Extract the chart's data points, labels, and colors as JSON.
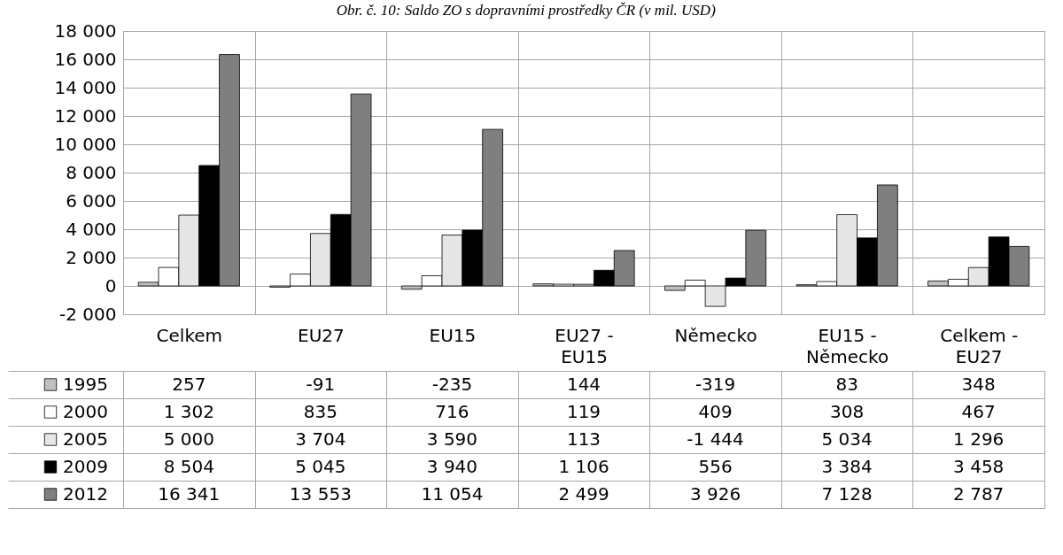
{
  "chart_data": {
    "type": "bar",
    "title": "Obr. č. 10: Saldo ZO s dopravními prostředky ČR (v mil. USD)",
    "categories": [
      "Celkem",
      "EU27",
      "EU15",
      "EU27 - EU15",
      "Německo",
      "EU15 - Německo",
      "Celkem - EU27"
    ],
    "series": [
      {
        "name": "1995",
        "color": "#bfbfbf",
        "values": [
          257,
          -91,
          -235,
          144,
          -319,
          83,
          348
        ],
        "value_labels": [
          "257",
          "-91",
          "-235",
          "144",
          "-319",
          "83",
          "348"
        ]
      },
      {
        "name": "2000",
        "color": "#ffffff",
        "values": [
          1302,
          835,
          716,
          119,
          409,
          308,
          467
        ],
        "value_labels": [
          "1 302",
          "835",
          "716",
          "119",
          "409",
          "308",
          "467"
        ]
      },
      {
        "name": "2005",
        "color": "#e6e6e6",
        "values": [
          5000,
          3704,
          3590,
          113,
          -1444,
          5034,
          1296
        ],
        "value_labels": [
          "5 000",
          "3 704",
          "3 590",
          "113",
          "-1 444",
          "5 034",
          "1 296"
        ]
      },
      {
        "name": "2009",
        "color": "#000000",
        "values": [
          8504,
          5045,
          3940,
          1106,
          556,
          3384,
          3458
        ],
        "value_labels": [
          "8 504",
          "5 045",
          "3 940",
          "1 106",
          "556",
          "3 384",
          "3 458"
        ]
      },
      {
        "name": "2012",
        "color": "#7f7f7f",
        "values": [
          16341,
          13553,
          11054,
          2499,
          3926,
          7128,
          2787
        ],
        "value_labels": [
          "16 341",
          "13 553",
          "11 054",
          "2 499",
          "3 926",
          "7 128",
          "2 787"
        ]
      }
    ],
    "ylim": [
      -2000,
      18000
    ],
    "yticks": [
      {
        "value": -2000,
        "label": "-2 000"
      },
      0,
      {
        "value": 2000,
        "label": "2 000"
      },
      {
        "value": 4000,
        "label": "4 000"
      },
      {
        "value": 6000,
        "label": "6 000"
      },
      {
        "value": 8000,
        "label": "8 000"
      },
      {
        "value": 10000,
        "label": "10 000"
      },
      {
        "value": 12000,
        "label": "12 000"
      },
      {
        "value": 14000,
        "label": "14 000"
      },
      {
        "value": 16000,
        "label": "16 000"
      },
      {
        "value": 18000,
        "label": "18 000"
      }
    ],
    "grid": true,
    "legend": "bottom left"
  }
}
